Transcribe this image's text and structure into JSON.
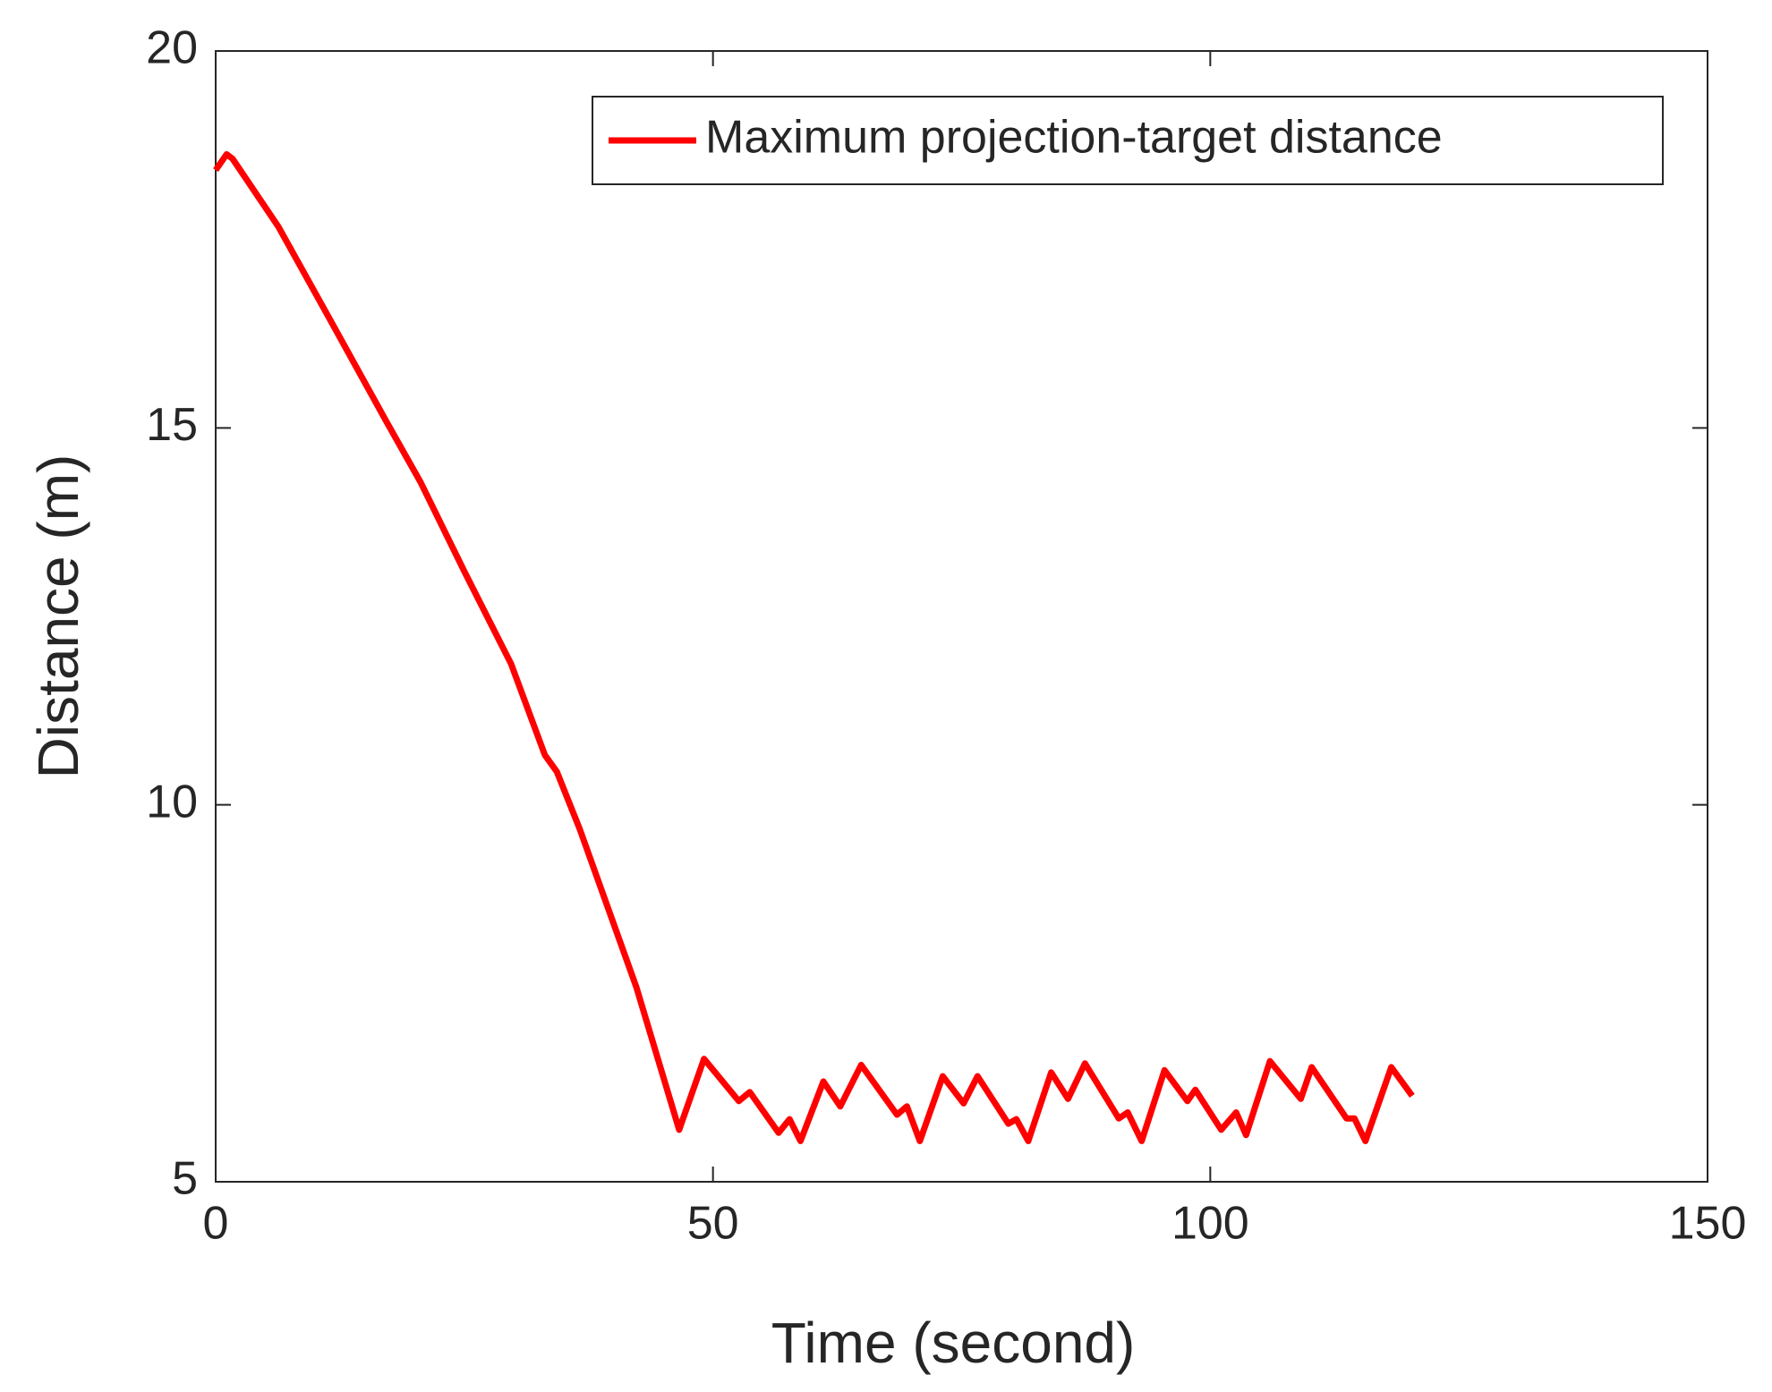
{
  "chart_data": {
    "type": "line",
    "x_label": "Time (second)",
    "y_label": "Distance (m)",
    "x": [
      0,
      1.1,
      1.7,
      6.3,
      11.4,
      17.1,
      20.6,
      25.1,
      29.7,
      33.1,
      34.3,
      36.6,
      42.3,
      46.6,
      49.1,
      52.6,
      53.7,
      56.6,
      57.7,
      58.8,
      61.1,
      62.8,
      64.9,
      68.5,
      69.5,
      70.8,
      73.1,
      75.2,
      76.6,
      79.7,
      80.5,
      81.7,
      84.0,
      85.7,
      87.4,
      90.8,
      91.7,
      93.1,
      95.4,
      97.7,
      98.5,
      101.1,
      102.6,
      103.6,
      106.0,
      109.1,
      110.2,
      113.7,
      114.5,
      115.6,
      118.2,
      120.3
    ],
    "series": [
      {
        "name": "Maximum projection-target distance",
        "color": "#ff0000",
        "values": [
          18.42,
          18.63,
          18.57,
          17.67,
          16.46,
          15.1,
          14.28,
          13.07,
          11.87,
          10.66,
          10.44,
          9.68,
          7.58,
          5.69,
          6.63,
          6.07,
          6.19,
          5.65,
          5.83,
          5.54,
          6.33,
          6.0,
          6.55,
          5.89,
          6.0,
          5.54,
          6.4,
          6.04,
          6.4,
          5.77,
          5.83,
          5.54,
          6.45,
          6.1,
          6.57,
          5.84,
          5.92,
          5.54,
          6.48,
          6.07,
          6.22,
          5.69,
          5.92,
          5.62,
          6.6,
          6.1,
          6.52,
          5.84,
          5.84,
          5.54,
          6.52,
          6.14
        ]
      }
    ],
    "xlim": [
      0,
      150
    ],
    "xticks": [
      0,
      50,
      100,
      150
    ],
    "ylim": [
      5,
      20
    ],
    "yticks": [
      5,
      10,
      15,
      20
    ],
    "grid": false,
    "legend": "top-right"
  }
}
